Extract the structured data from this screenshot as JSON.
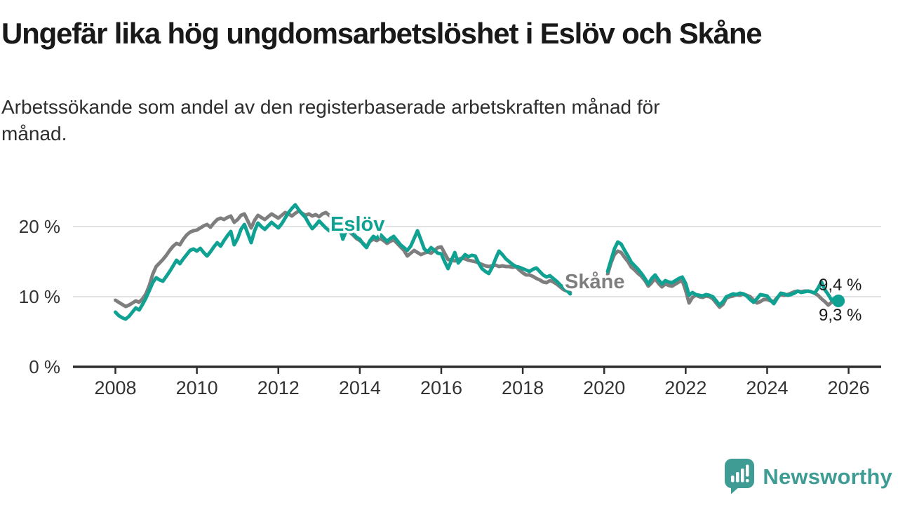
{
  "header": {
    "title": "Ungefär lika hög ungdomsarbetslöshet i Eslöv och Skåne",
    "subtitle": "Arbetssökande som andel av den registerbaserade arbetskraften månad för månad.",
    "subtitle_lines": [
      "Arbetssökande som andel av den registerbaserade arbetskraften månad för",
      "månad."
    ]
  },
  "footer": {
    "brand": "Newsworthy",
    "brand_color": "#3E9C94"
  },
  "colors": {
    "eslov": "#0FA293",
    "skane": "#7E7E7E",
    "axis": "#2e2e2e",
    "grid": "#d9d9d9",
    "tick_text": "#333333",
    "end_label_text": "#1a1a1a"
  },
  "chart_data": {
    "type": "line",
    "unit": "%",
    "frequency": "monthly",
    "start_month": "2008-01",
    "end_month": "2025-10",
    "data_gap": {
      "from": "2019-04",
      "to": "2020-01"
    },
    "ylim": [
      0,
      25
    ],
    "grid": "horizontal",
    "y_ticks": [
      {
        "value": 0,
        "label": "0 %"
      },
      {
        "value": 10,
        "label": "10 %"
      },
      {
        "value": 20,
        "label": "20 %"
      }
    ],
    "x_ticks": [
      "2008",
      "2010",
      "2012",
      "2014",
      "2016",
      "2018",
      "2020",
      "2022",
      "2024",
      "2026"
    ],
    "series_labels": [
      {
        "text": "Eslöv",
        "series": "Eslöv"
      },
      {
        "text": "Skåne",
        "series": "Skåne"
      }
    ],
    "end_labels": [
      {
        "series": "Eslöv",
        "text": "9,4 %"
      },
      {
        "series": "Skåne",
        "text": "9,3 %"
      }
    ],
    "series": [
      {
        "name": "Skåne",
        "color": "#7E7E7E",
        "values": [
          9.5,
          9.2,
          8.9,
          8.6,
          8.8,
          9.1,
          9.4,
          9.2,
          9.7,
          10.4,
          11.6,
          13.2,
          14.3,
          14.8,
          15.3,
          15.9,
          16.6,
          17.2,
          17.6,
          17.4,
          18.2,
          18.8,
          19.2,
          19.4,
          19.5,
          19.8,
          20.1,
          20.3,
          19.9,
          20.5,
          21.0,
          21.2,
          21.0,
          21.3,
          21.5,
          20.6,
          21.0,
          21.6,
          21.8,
          20.8,
          19.8,
          20.9,
          21.6,
          21.3,
          21.0,
          21.4,
          21.8,
          21.5,
          21.2,
          21.6,
          22.0,
          21.8,
          21.5,
          21.9,
          22.2,
          21.9,
          21.6,
          21.8,
          21.5,
          21.7,
          21.4,
          21.8,
          22.0,
          21.6,
          21.2,
          20.6,
          20.0,
          19.0,
          19.6,
          19.2,
          18.8,
          18.3,
          18.0,
          17.6,
          17.1,
          17.9,
          18.2,
          18.0,
          18.3,
          18.0,
          17.6,
          17.9,
          18.1,
          17.6,
          17.1,
          16.6,
          15.8,
          16.2,
          16.6,
          16.3,
          16.0,
          16.2,
          16.4,
          16.2,
          16.6,
          17.0,
          17.1,
          16.2,
          15.3,
          15.2,
          15.1,
          15.3,
          15.5,
          15.4,
          15.2,
          15.1,
          15.0,
          14.8,
          14.6,
          14.4,
          14.3,
          14.4,
          14.5,
          14.3,
          14.4,
          14.3,
          14.3,
          14.2,
          14.3,
          13.8,
          13.4,
          13.1,
          13.1,
          12.9,
          12.6,
          12.4,
          12.1,
          12.0,
          12.3,
          12.1,
          11.8,
          11.4,
          11.0,
          10.8,
          10.6,
          null,
          null,
          null,
          null,
          null,
          null,
          null,
          null,
          null,
          null,
          13.2,
          14.8,
          16.0,
          16.5,
          16.3,
          15.6,
          15.0,
          14.2,
          13.8,
          13.3,
          12.9,
          12.3,
          11.5,
          12.0,
          12.6,
          11.9,
          11.4,
          11.8,
          11.6,
          11.5,
          11.8,
          12.1,
          12.3,
          10.9,
          9.1,
          9.9,
          10.2,
          10.0,
          9.9,
          10.1,
          10.0,
          9.7,
          9.1,
          8.5,
          8.9,
          9.8,
          10.0,
          10.1,
          10.3,
          10.2,
          10.4,
          10.2,
          10.0,
          9.5,
          9.1,
          9.3,
          9.6,
          9.6,
          9.4,
          9.3,
          9.9,
          10.3,
          10.2,
          10.3,
          10.5,
          10.7,
          10.8,
          10.7,
          10.8,
          10.8,
          10.7,
          10.5,
          10.2,
          9.7,
          9.3,
          8.8,
          9.2,
          9.6,
          9.3
        ]
      },
      {
        "name": "Eslöv",
        "color": "#0FA293",
        "end_dot": true,
        "values": [
          7.8,
          7.3,
          7.0,
          6.8,
          7.2,
          7.8,
          8.4,
          8.1,
          8.9,
          9.8,
          10.9,
          12.0,
          12.7,
          12.4,
          12.2,
          12.9,
          13.6,
          14.4,
          15.2,
          14.7,
          15.4,
          16.0,
          16.6,
          16.8,
          16.5,
          16.9,
          16.3,
          15.8,
          16.4,
          17.1,
          17.7,
          17.2,
          18.0,
          18.7,
          19.3,
          17.4,
          18.3,
          19.6,
          20.3,
          19.0,
          17.7,
          19.4,
          20.5,
          20.0,
          19.6,
          20.1,
          20.6,
          20.2,
          19.8,
          20.4,
          21.2,
          22.0,
          22.6,
          23.1,
          22.4,
          21.8,
          21.3,
          20.4,
          19.7,
          20.2,
          20.8,
          20.3,
          19.8,
          19.4,
          19.9,
          20.4,
          20.0,
          18.2,
          19.4,
          19.6,
          19.0,
          18.5,
          18.2,
          17.5,
          17.0,
          18.0,
          18.6,
          18.3,
          18.9,
          18.4,
          17.9,
          18.3,
          18.6,
          18.0,
          17.4,
          17.0,
          16.6,
          17.2,
          18.3,
          19.4,
          18.1,
          16.8,
          16.4,
          17.0,
          16.6,
          16.2,
          16.1,
          15.0,
          14.0,
          15.2,
          16.3,
          14.8,
          15.4,
          16.0,
          15.7,
          15.9,
          15.8,
          14.8,
          14.0,
          13.6,
          13.3,
          14.2,
          15.4,
          16.5,
          16.0,
          15.4,
          15.0,
          14.6,
          14.3,
          14.2,
          14.0,
          13.8,
          13.6,
          13.9,
          14.1,
          13.6,
          13.1,
          12.8,
          13.0,
          12.6,
          12.2,
          11.7,
          11.3,
          10.9,
          10.4,
          null,
          null,
          null,
          null,
          null,
          null,
          null,
          null,
          null,
          null,
          13.6,
          15.2,
          16.8,
          17.8,
          17.5,
          16.6,
          15.8,
          14.9,
          14.4,
          13.9,
          13.3,
          12.6,
          11.8,
          12.6,
          13.1,
          12.4,
          11.8,
          12.3,
          12.1,
          12.0,
          12.3,
          12.6,
          12.8,
          11.9,
          10.2,
          10.6,
          10.3,
          10.2,
          10.1,
          10.3,
          10.2,
          10.0,
          9.4,
          8.8,
          9.3,
          10.0,
          10.2,
          10.4,
          10.3,
          10.5,
          10.4,
          10.1,
          9.6,
          9.2,
          9.7,
          10.3,
          10.2,
          10.1,
          9.5,
          9.0,
          9.8,
          10.5,
          10.4,
          10.2,
          10.3,
          10.5,
          10.8,
          10.6,
          10.7,
          10.8,
          10.7,
          10.5,
          11.2,
          12.1,
          11.0,
          10.3,
          9.5,
          9.8,
          9.4
        ]
      }
    ]
  }
}
